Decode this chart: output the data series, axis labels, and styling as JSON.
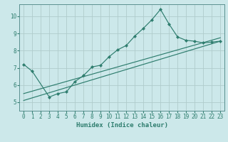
{
  "xlabel": "Humidex (Indice chaleur)",
  "bg_color": "#cce8ea",
  "grid_color": "#b0cccc",
  "line_color": "#2e7d6e",
  "spine_color": "#5a9090",
  "xlim": [
    -0.5,
    23.5
  ],
  "ylim": [
    4.5,
    10.7
  ],
  "yticks": [
    5,
    6,
    7,
    8,
    9,
    10
  ],
  "xticks": [
    0,
    1,
    2,
    3,
    4,
    5,
    6,
    7,
    8,
    9,
    10,
    11,
    12,
    13,
    14,
    15,
    16,
    17,
    18,
    19,
    20,
    21,
    22,
    23
  ],
  "curve1_x": [
    0,
    1,
    3,
    4,
    5,
    6,
    7,
    8,
    9,
    10,
    11,
    12,
    13,
    14,
    15,
    16,
    17,
    18,
    19,
    20,
    21,
    22,
    23
  ],
  "curve1_y": [
    7.2,
    6.8,
    5.3,
    5.5,
    5.6,
    6.2,
    6.55,
    7.05,
    7.15,
    7.65,
    8.05,
    8.3,
    8.85,
    9.3,
    9.8,
    10.4,
    9.55,
    8.8,
    8.6,
    8.55,
    8.45,
    8.5,
    8.55
  ],
  "curve2_x": [
    0,
    23
  ],
  "curve2_y": [
    5.1,
    8.55
  ],
  "curve3_x": [
    0,
    23
  ],
  "curve3_y": [
    5.5,
    8.75
  ],
  "tick_fontsize": 5.5,
  "xlabel_fontsize": 6.5
}
